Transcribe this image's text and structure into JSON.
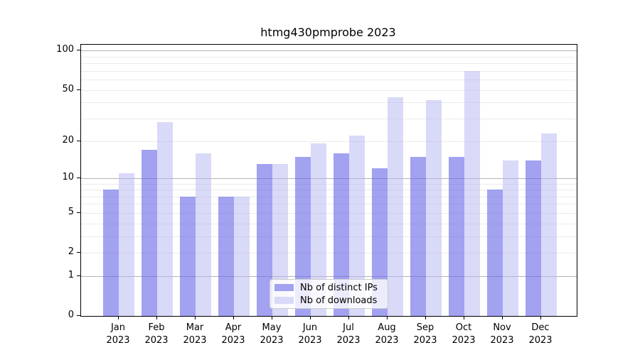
{
  "title": "htmg430pmprobe 2023",
  "chart_data": {
    "type": "bar",
    "title": "htmg430pmprobe 2023",
    "scale": "log10(value+1)",
    "ylim": [
      0,
      111
    ],
    "grid": "on",
    "legend_position": "lower center",
    "categories": [
      "Jan",
      "Feb",
      "Mar",
      "Apr",
      "May",
      "Jun",
      "Jul",
      "Aug",
      "Sep",
      "Oct",
      "Nov",
      "Dec"
    ],
    "year": "2023",
    "yticks": [
      0,
      1,
      2,
      5,
      10,
      20,
      50,
      100
    ],
    "grid_minor": [
      2,
      3,
      4,
      5,
      6,
      7,
      8,
      9,
      20,
      30,
      40,
      50,
      60,
      70,
      80,
      90
    ],
    "grid_major": [
      1,
      10,
      100
    ],
    "series": [
      {
        "name": "Nb of distinct IPs",
        "color": "#a2a2f1",
        "fill": "rgba(105,105,232,0.62)",
        "values": [
          8,
          17,
          7,
          7,
          13,
          15,
          16,
          12,
          15,
          15,
          8,
          14
        ]
      },
      {
        "name": "Nb of downloads",
        "color": "#d9d9f8",
        "fill": "rgba(180,180,242,0.5)",
        "values": [
          11,
          28,
          16,
          7,
          13,
          19,
          22,
          44,
          42,
          70,
          14,
          23
        ]
      }
    ],
    "colors": {
      "grid_minor": "#ebebeb",
      "grid_major": "#b3b3b3",
      "spine": "#000000",
      "text": "#000000",
      "background": "#ffffff"
    }
  }
}
